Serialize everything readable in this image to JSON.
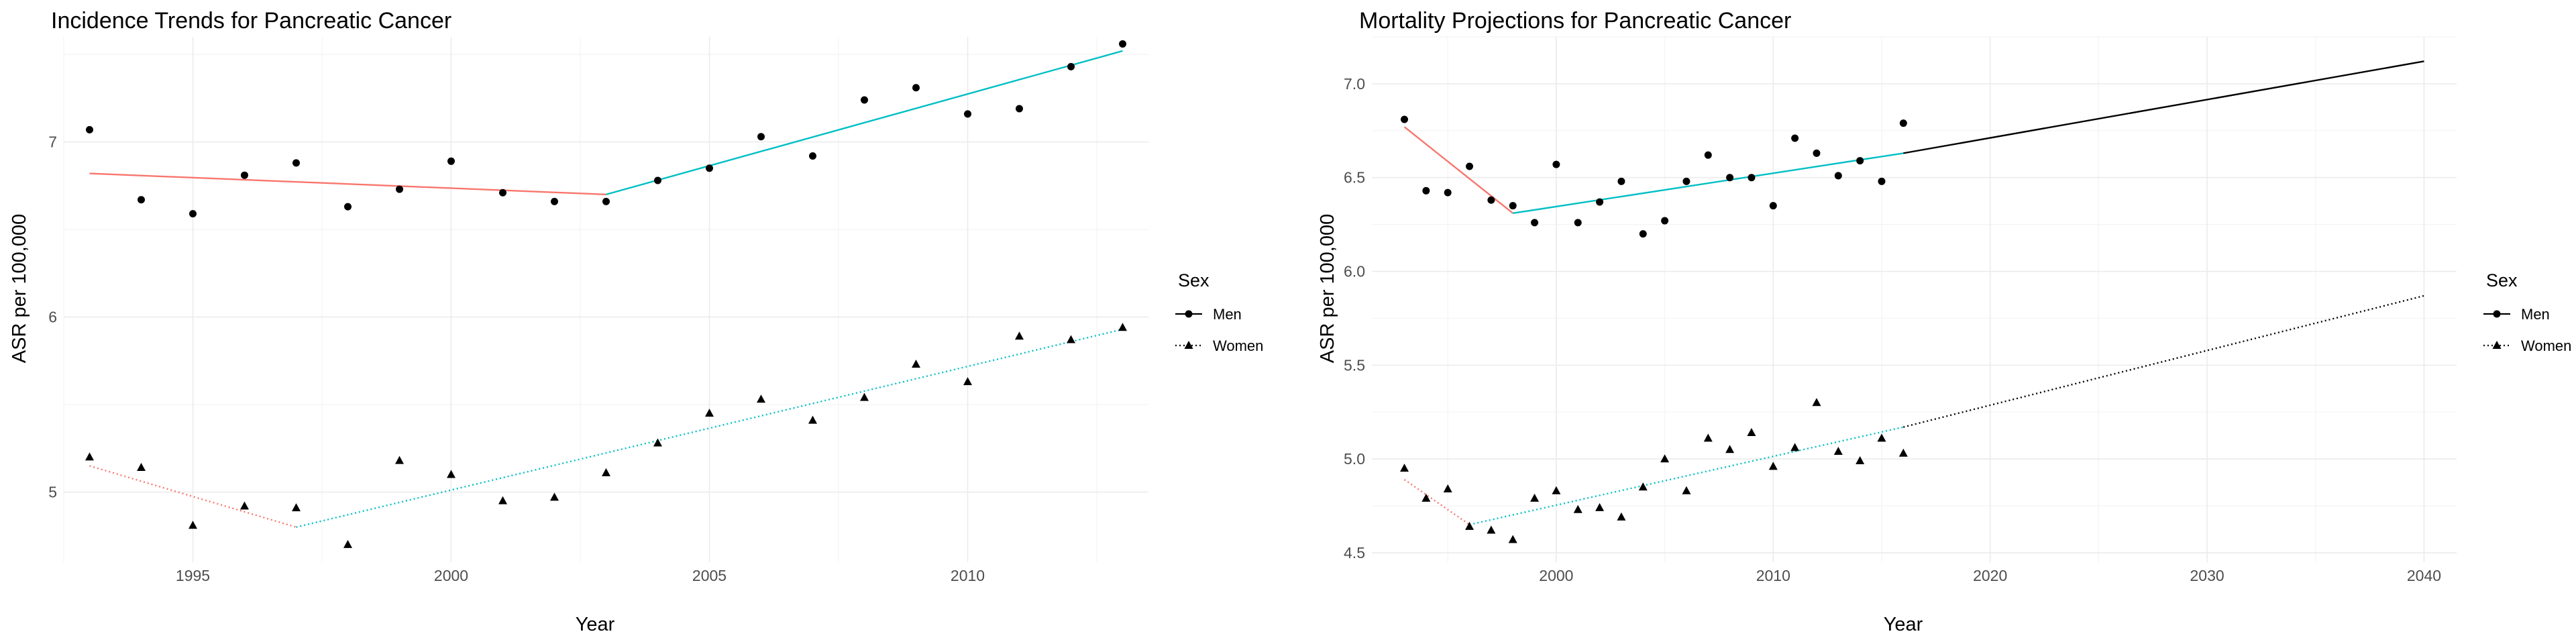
{
  "charts": [
    {
      "title": "Incidence Trends for Pancreatic Cancer",
      "xlabel": "Year",
      "ylabel": "ASR per 100,000",
      "xlim": [
        1992.5,
        2013.5
      ],
      "ylim": [
        4.6,
        7.6
      ],
      "xticks": [
        1995,
        2000,
        2005,
        2010
      ],
      "yticks": [
        5,
        6,
        7
      ],
      "legend_title": "Sex",
      "legend": [
        {
          "key": "men",
          "label": "Men"
        },
        {
          "key": "women",
          "label": "Women"
        }
      ]
    },
    {
      "title": "Mortality Projections for Pancreatic Cancer",
      "xlabel": "Year",
      "ylabel": "ASR per 100,000",
      "xlim": [
        1991.5,
        2041.5
      ],
      "ylim": [
        4.45,
        7.25
      ],
      "xticks": [
        2000,
        2010,
        2020,
        2030,
        2040
      ],
      "yticks": [
        4.5,
        5.0,
        5.5,
        6.0,
        6.5,
        7.0
      ],
      "legend_title": "Sex",
      "legend": [
        {
          "key": "men",
          "label": "Men"
        },
        {
          "key": "women",
          "label": "Women"
        }
      ]
    }
  ],
  "chart_data": [
    {
      "type": "scatter",
      "title": "Incidence Trends for Pancreatic Cancer",
      "xlabel": "Year",
      "ylabel": "ASR per 100,000",
      "legend_title": "Sex",
      "xlim": [
        1992.5,
        2013.5
      ],
      "ylim": [
        4.6,
        7.6
      ],
      "series": [
        {
          "name": "Men",
          "marker": "circle",
          "x": [
            1993,
            1994,
            1995,
            1996,
            1997,
            1998,
            1999,
            2000,
            2001,
            2002,
            2003,
            2004,
            2005,
            2006,
            2007,
            2008,
            2009,
            2010,
            2011,
            2012,
            2013
          ],
          "y": [
            7.07,
            6.67,
            6.59,
            6.81,
            6.88,
            6.63,
            6.73,
            6.89,
            6.71,
            6.66,
            6.66,
            6.78,
            6.85,
            7.03,
            6.92,
            7.24,
            7.31,
            7.16,
            7.19,
            7.43,
            7.56
          ],
          "trend_segments": [
            {
              "x": [
                1993,
                2003
              ],
              "y": [
                6.82,
                6.7
              ],
              "color": "#F8766D",
              "dash": "solid"
            },
            {
              "x": [
                2003,
                2013
              ],
              "y": [
                6.7,
                7.52
              ],
              "color": "#00BFC4",
              "dash": "solid"
            }
          ]
        },
        {
          "name": "Women",
          "marker": "triangle",
          "x": [
            1993,
            1994,
            1995,
            1996,
            1997,
            1998,
            1999,
            2000,
            2001,
            2002,
            2003,
            2004,
            2005,
            2006,
            2007,
            2008,
            2009,
            2010,
            2011,
            2012,
            2013
          ],
          "y": [
            5.2,
            5.14,
            4.81,
            4.92,
            4.91,
            4.7,
            5.18,
            5.1,
            4.95,
            4.97,
            5.11,
            5.28,
            5.45,
            5.53,
            5.41,
            5.54,
            5.73,
            5.63,
            5.89,
            5.87,
            5.94
          ],
          "trend_segments": [
            {
              "x": [
                1993,
                1997
              ],
              "y": [
                5.15,
                4.8
              ],
              "color": "#F8766D",
              "dash": "dotted"
            },
            {
              "x": [
                1997,
                2013
              ],
              "y": [
                4.8,
                5.93
              ],
              "color": "#00BFC4",
              "dash": "dotted"
            }
          ]
        }
      ]
    },
    {
      "type": "scatter",
      "title": "Mortality Projections for Pancreatic Cancer",
      "xlabel": "Year",
      "ylabel": "ASR per 100,000",
      "legend_title": "Sex",
      "xlim": [
        1991.5,
        2041.5
      ],
      "ylim": [
        4.45,
        7.25
      ],
      "series": [
        {
          "name": "Men",
          "marker": "circle",
          "x": [
            1993,
            1994,
            1995,
            1996,
            1997,
            1998,
            1999,
            2000,
            2001,
            2002,
            2003,
            2004,
            2005,
            2006,
            2007,
            2008,
            2009,
            2010,
            2011,
            2012,
            2013,
            2014,
            2015,
            2016
          ],
          "y": [
            6.81,
            6.43,
            6.42,
            6.56,
            6.38,
            6.35,
            6.26,
            6.57,
            6.26,
            6.37,
            6.48,
            6.2,
            6.27,
            6.48,
            6.62,
            6.5,
            6.5,
            6.35,
            6.71,
            6.63,
            6.51,
            6.59,
            6.48,
            6.79
          ],
          "trend_segments": [
            {
              "x": [
                1993,
                1998
              ],
              "y": [
                6.77,
                6.31
              ],
              "color": "#F8766D",
              "dash": "solid"
            },
            {
              "x": [
                1998,
                2016
              ],
              "y": [
                6.31,
                6.63
              ],
              "color": "#00BFC4",
              "dash": "solid"
            },
            {
              "x": [
                2016,
                2040
              ],
              "y": [
                6.63,
                7.12
              ],
              "color": "#000000",
              "dash": "solid"
            }
          ]
        },
        {
          "name": "Women",
          "marker": "triangle",
          "x": [
            1993,
            1994,
            1995,
            1996,
            1997,
            1998,
            1999,
            2000,
            2001,
            2002,
            2003,
            2004,
            2005,
            2006,
            2007,
            2008,
            2009,
            2010,
            2011,
            2012,
            2013,
            2014,
            2015,
            2016
          ],
          "y": [
            4.95,
            4.79,
            4.84,
            4.64,
            4.62,
            4.57,
            4.79,
            4.83,
            4.73,
            4.74,
            4.69,
            4.85,
            5.0,
            4.83,
            5.11,
            5.05,
            5.14,
            4.96,
            5.06,
            5.3,
            5.04,
            4.99,
            5.11,
            5.03
          ],
          "trend_segments": [
            {
              "x": [
                1993,
                1996
              ],
              "y": [
                4.89,
                4.65
              ],
              "color": "#F8766D",
              "dash": "dotted"
            },
            {
              "x": [
                1996,
                2016
              ],
              "y": [
                4.65,
                5.17
              ],
              "color": "#00BFC4",
              "dash": "dotted"
            },
            {
              "x": [
                2016,
                2040
              ],
              "y": [
                5.17,
                5.87
              ],
              "color": "#000000",
              "dash": "dotted"
            }
          ]
        }
      ]
    }
  ]
}
